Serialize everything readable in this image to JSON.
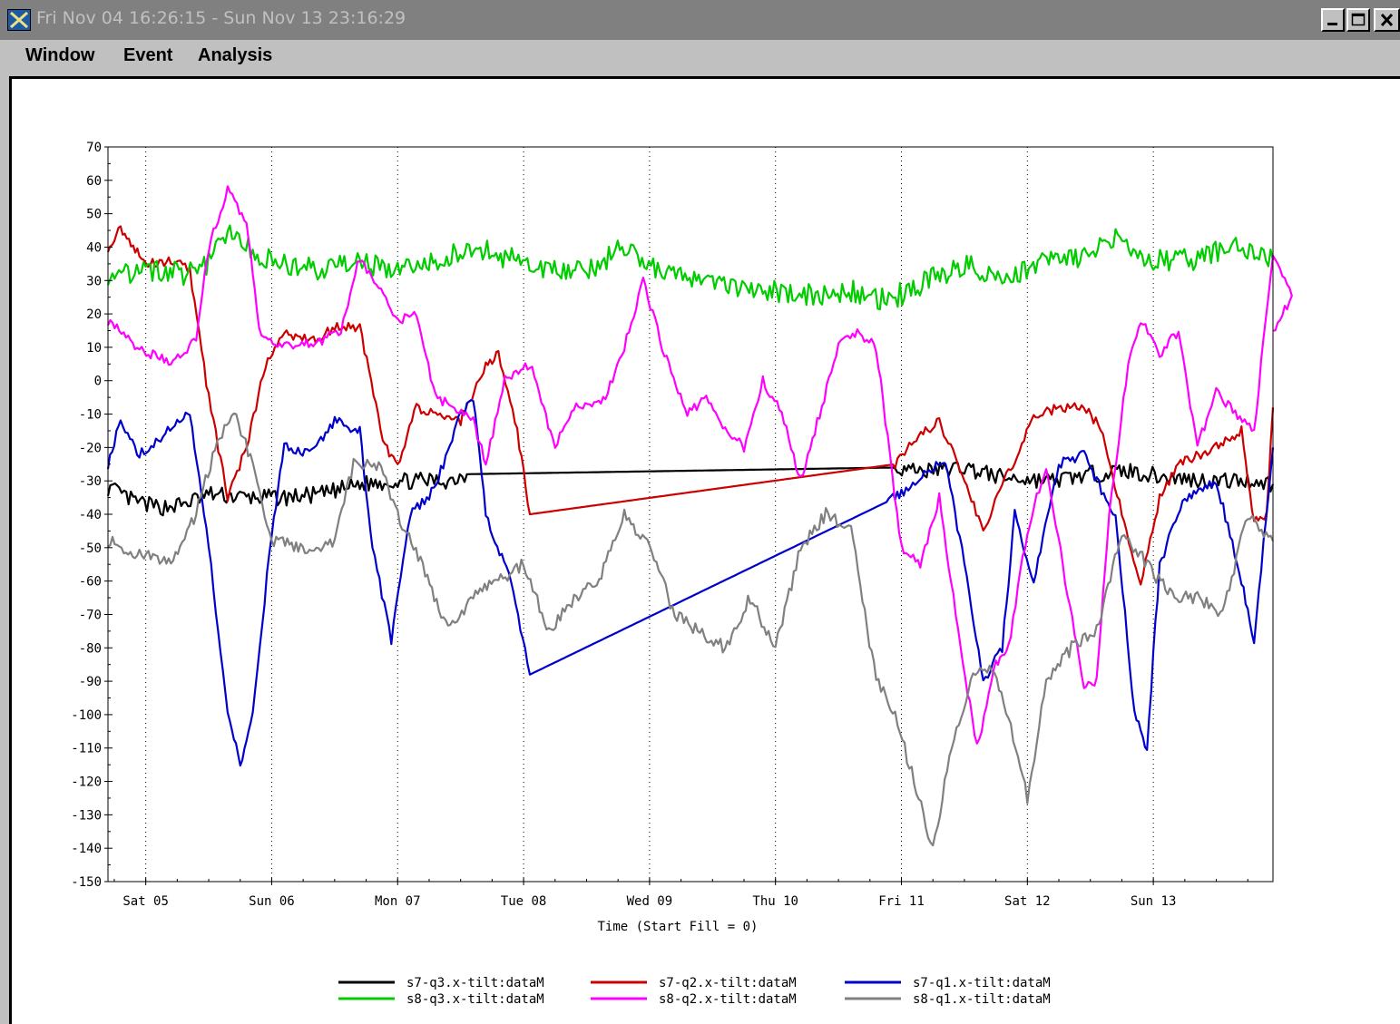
{
  "window": {
    "title": "Fri Nov 04 16:26:15 - Sun Nov 13 23:16:29",
    "icon": "x-logo-icon",
    "controls": [
      "minimize-icon",
      "maximize-icon",
      "close-icon"
    ]
  },
  "menu": {
    "window_label": "Window",
    "event_label": "Event",
    "analysis_label": "Analysis"
  },
  "chart_data": {
    "type": "line",
    "title": "",
    "xlabel": "Time (Start Fill = 0)",
    "ylabel": "",
    "xlim_days": [
      0.2,
      9.45
    ],
    "ylim": [
      -150,
      70
    ],
    "y_ticks": [
      70,
      60,
      50,
      40,
      30,
      20,
      10,
      0,
      -10,
      -20,
      -30,
      -40,
      -50,
      -60,
      -70,
      -80,
      -90,
      -100,
      -110,
      -120,
      -130,
      -140,
      -150
    ],
    "x_ticks": [
      {
        "label": "Sat 05",
        "day": 0.5
      },
      {
        "label": "Sun 06",
        "day": 1.5
      },
      {
        "label": "Mon 07",
        "day": 2.5
      },
      {
        "label": "Tue 08",
        "day": 3.5
      },
      {
        "label": "Wed 09",
        "day": 4.5
      },
      {
        "label": "Thu 10",
        "day": 5.5
      },
      {
        "label": "Fri 11",
        "day": 6.5
      },
      {
        "label": "Sat 12",
        "day": 7.5
      },
      {
        "label": "Sun 13",
        "day": 8.5
      }
    ],
    "grid": "vertical-dotted",
    "legend_position": "bottom",
    "series": [
      {
        "name": "s7-q3.x-tilt:dataM",
        "color": "#000000",
        "noise": 2.5,
        "points": [
          [
            0.2,
            -32
          ],
          [
            0.4,
            -36
          ],
          [
            0.6,
            -38
          ],
          [
            0.8,
            -37
          ],
          [
            1.0,
            -34
          ],
          [
            1.3,
            -35
          ],
          [
            1.6,
            -35
          ],
          [
            1.9,
            -34
          ],
          [
            2.2,
            -31
          ],
          [
            2.5,
            -30
          ],
          [
            2.9,
            -30
          ],
          [
            3.05,
            -28
          ],
          [
            6.45,
            -26
          ],
          [
            6.7,
            -27
          ],
          [
            7.0,
            -26
          ],
          [
            7.3,
            -29
          ],
          [
            7.7,
            -30
          ],
          [
            8.0,
            -28
          ],
          [
            8.3,
            -27
          ],
          [
            8.6,
            -29
          ],
          [
            9.0,
            -30
          ],
          [
            9.3,
            -30
          ],
          [
            9.45,
            -31
          ]
        ]
      },
      {
        "name": "s7-q2.x-tilt:dataM",
        "color": "#cc0000",
        "noise": 1.5,
        "points": [
          [
            0.2,
            40
          ],
          [
            0.3,
            46
          ],
          [
            0.4,
            40
          ],
          [
            0.5,
            35
          ],
          [
            0.7,
            36
          ],
          [
            0.85,
            33
          ],
          [
            1.0,
            -5
          ],
          [
            1.15,
            -35
          ],
          [
            1.3,
            -20
          ],
          [
            1.45,
            5
          ],
          [
            1.6,
            14
          ],
          [
            1.85,
            12
          ],
          [
            2.0,
            16
          ],
          [
            2.2,
            16
          ],
          [
            2.4,
            -20
          ],
          [
            2.5,
            -25
          ],
          [
            2.65,
            -8
          ],
          [
            2.8,
            -10
          ],
          [
            3.0,
            -12
          ],
          [
            3.2,
            5
          ],
          [
            3.3,
            8
          ],
          [
            3.45,
            -15
          ],
          [
            3.55,
            -40
          ],
          [
            6.45,
            -25
          ],
          [
            6.6,
            -18
          ],
          [
            6.8,
            -12
          ],
          [
            7.0,
            -30
          ],
          [
            7.15,
            -45
          ],
          [
            7.3,
            -30
          ],
          [
            7.4,
            -25
          ],
          [
            7.55,
            -10
          ],
          [
            7.8,
            -8
          ],
          [
            7.95,
            -8
          ],
          [
            8.1,
            -15
          ],
          [
            8.25,
            -40
          ],
          [
            8.4,
            -60
          ],
          [
            8.55,
            -35
          ],
          [
            8.7,
            -25
          ],
          [
            9.0,
            -20
          ],
          [
            9.2,
            -15
          ],
          [
            9.3,
            -42
          ],
          [
            9.4,
            -40
          ],
          [
            9.45,
            -8
          ]
        ]
      },
      {
        "name": "s7-q1.x-tilt:dataM",
        "color": "#0000cc",
        "noise": 1.5,
        "points": [
          [
            0.2,
            -25
          ],
          [
            0.3,
            -12
          ],
          [
            0.45,
            -22
          ],
          [
            0.6,
            -18
          ],
          [
            0.75,
            -12
          ],
          [
            0.85,
            -10
          ],
          [
            1.0,
            -50
          ],
          [
            1.15,
            -100
          ],
          [
            1.25,
            -115
          ],
          [
            1.35,
            -100
          ],
          [
            1.5,
            -45
          ],
          [
            1.6,
            -20
          ],
          [
            1.8,
            -22
          ],
          [
            2.0,
            -12
          ],
          [
            2.2,
            -15
          ],
          [
            2.3,
            -50
          ],
          [
            2.45,
            -78
          ],
          [
            2.6,
            -40
          ],
          [
            2.75,
            -35
          ],
          [
            2.9,
            -22
          ],
          [
            3.0,
            -10
          ],
          [
            3.1,
            -5
          ],
          [
            3.2,
            -40
          ],
          [
            3.4,
            -60
          ],
          [
            3.55,
            -88
          ],
          [
            6.4,
            -36
          ],
          [
            6.5,
            -34
          ],
          [
            6.7,
            -27
          ],
          [
            6.85,
            -24
          ],
          [
            7.0,
            -55
          ],
          [
            7.15,
            -90
          ],
          [
            7.3,
            -80
          ],
          [
            7.4,
            -40
          ],
          [
            7.55,
            -60
          ],
          [
            7.75,
            -25
          ],
          [
            7.95,
            -22
          ],
          [
            8.05,
            -30
          ],
          [
            8.2,
            -40
          ],
          [
            8.35,
            -100
          ],
          [
            8.45,
            -110
          ],
          [
            8.55,
            -55
          ],
          [
            8.75,
            -35
          ],
          [
            9.0,
            -30
          ],
          [
            9.2,
            -60
          ],
          [
            9.3,
            -78
          ],
          [
            9.45,
            -20
          ]
        ]
      },
      {
        "name": "s8-q3.x-tilt:dataM",
        "color": "#00cc00",
        "noise": 3.5,
        "points": [
          [
            0.2,
            32
          ],
          [
            0.5,
            33
          ],
          [
            0.8,
            32
          ],
          [
            1.0,
            35
          ],
          [
            1.15,
            46
          ],
          [
            1.35,
            38
          ],
          [
            1.6,
            35
          ],
          [
            1.9,
            33
          ],
          [
            2.2,
            35
          ],
          [
            2.5,
            33
          ],
          [
            2.8,
            36
          ],
          [
            3.05,
            40
          ],
          [
            3.3,
            38
          ],
          [
            3.6,
            33
          ],
          [
            4.0,
            33
          ],
          [
            4.3,
            40
          ],
          [
            4.6,
            33
          ],
          [
            5.0,
            30
          ],
          [
            5.4,
            27
          ],
          [
            5.8,
            26
          ],
          [
            6.1,
            27
          ],
          [
            6.4,
            24
          ],
          [
            6.7,
            30
          ],
          [
            7.0,
            35
          ],
          [
            7.3,
            30
          ],
          [
            7.6,
            35
          ],
          [
            7.9,
            36
          ],
          [
            8.2,
            42
          ],
          [
            8.5,
            36
          ],
          [
            8.8,
            36
          ],
          [
            9.1,
            40
          ],
          [
            9.45,
            36
          ]
        ]
      },
      {
        "name": "s8-q2.x-tilt:dataM",
        "color": "#ff00ff",
        "noise": 1.5,
        "points": [
          [
            0.2,
            18
          ],
          [
            0.45,
            9
          ],
          [
            0.7,
            6
          ],
          [
            0.9,
            12
          ],
          [
            1.0,
            40
          ],
          [
            1.15,
            57
          ],
          [
            1.3,
            48
          ],
          [
            1.4,
            15
          ],
          [
            1.6,
            10
          ],
          [
            1.9,
            12
          ],
          [
            2.05,
            15
          ],
          [
            2.2,
            37
          ],
          [
            2.35,
            28
          ],
          [
            2.5,
            18
          ],
          [
            2.65,
            20
          ],
          [
            2.8,
            -5
          ],
          [
            2.95,
            -8
          ],
          [
            3.1,
            -12
          ],
          [
            3.2,
            -25
          ],
          [
            3.35,
            0
          ],
          [
            3.55,
            5
          ],
          [
            3.75,
            -20
          ],
          [
            3.9,
            -8
          ],
          [
            4.15,
            -5
          ],
          [
            4.3,
            10
          ],
          [
            4.45,
            30
          ],
          [
            4.6,
            10
          ],
          [
            4.8,
            -10
          ],
          [
            4.95,
            -5
          ],
          [
            5.1,
            -15
          ],
          [
            5.25,
            -20
          ],
          [
            5.4,
            0
          ],
          [
            5.55,
            -10
          ],
          [
            5.7,
            -30
          ],
          [
            5.85,
            -10
          ],
          [
            6.0,
            10
          ],
          [
            6.15,
            15
          ],
          [
            6.3,
            10
          ],
          [
            6.5,
            -50
          ],
          [
            6.65,
            -55
          ],
          [
            6.8,
            -35
          ],
          [
            6.95,
            -75
          ],
          [
            7.1,
            -110
          ],
          [
            7.25,
            -85
          ],
          [
            7.35,
            -80
          ],
          [
            7.5,
            -45
          ],
          [
            7.65,
            -25
          ],
          [
            7.8,
            -60
          ],
          [
            7.95,
            -92
          ],
          [
            8.05,
            -90
          ],
          [
            8.15,
            -40
          ],
          [
            8.3,
            5
          ],
          [
            8.4,
            18
          ],
          [
            8.55,
            8
          ],
          [
            8.7,
            15
          ],
          [
            8.85,
            -20
          ],
          [
            9.0,
            -3
          ],
          [
            9.15,
            -10
          ],
          [
            9.3,
            -15
          ],
          [
            9.45,
            38
          ],
          [
            9.6,
            25
          ],
          [
            9.45,
            15
          ]
        ]
      },
      {
        "name": "s8-q1.x-tilt:dataM",
        "color": "#808080",
        "noise": 2,
        "points": [
          [
            0.2,
            -48
          ],
          [
            0.45,
            -52
          ],
          [
            0.7,
            -55
          ],
          [
            0.9,
            -40
          ],
          [
            1.05,
            -20
          ],
          [
            1.2,
            -10
          ],
          [
            1.35,
            -25
          ],
          [
            1.5,
            -48
          ],
          [
            1.8,
            -50
          ],
          [
            2.0,
            -48
          ],
          [
            2.15,
            -25
          ],
          [
            2.35,
            -25
          ],
          [
            2.5,
            -40
          ],
          [
            2.7,
            -55
          ],
          [
            2.9,
            -75
          ],
          [
            3.1,
            -65
          ],
          [
            3.3,
            -60
          ],
          [
            3.5,
            -55
          ],
          [
            3.7,
            -75
          ],
          [
            3.9,
            -65
          ],
          [
            4.1,
            -60
          ],
          [
            4.3,
            -40
          ],
          [
            4.5,
            -50
          ],
          [
            4.7,
            -70
          ],
          [
            4.9,
            -75
          ],
          [
            5.1,
            -80
          ],
          [
            5.3,
            -65
          ],
          [
            5.5,
            -80
          ],
          [
            5.7,
            -50
          ],
          [
            5.9,
            -40
          ],
          [
            6.1,
            -45
          ],
          [
            6.3,
            -90
          ],
          [
            6.45,
            -100
          ],
          [
            6.6,
            -120
          ],
          [
            6.75,
            -140
          ],
          [
            6.9,
            -110
          ],
          [
            7.05,
            -90
          ],
          [
            7.2,
            -85
          ],
          [
            7.35,
            -100
          ],
          [
            7.5,
            -125
          ],
          [
            7.65,
            -90
          ],
          [
            7.85,
            -80
          ],
          [
            8.05,
            -75
          ],
          [
            8.25,
            -45
          ],
          [
            8.45,
            -55
          ],
          [
            8.65,
            -65
          ],
          [
            8.85,
            -65
          ],
          [
            9.05,
            -70
          ],
          [
            9.25,
            -40
          ],
          [
            9.45,
            -48
          ]
        ]
      }
    ]
  }
}
